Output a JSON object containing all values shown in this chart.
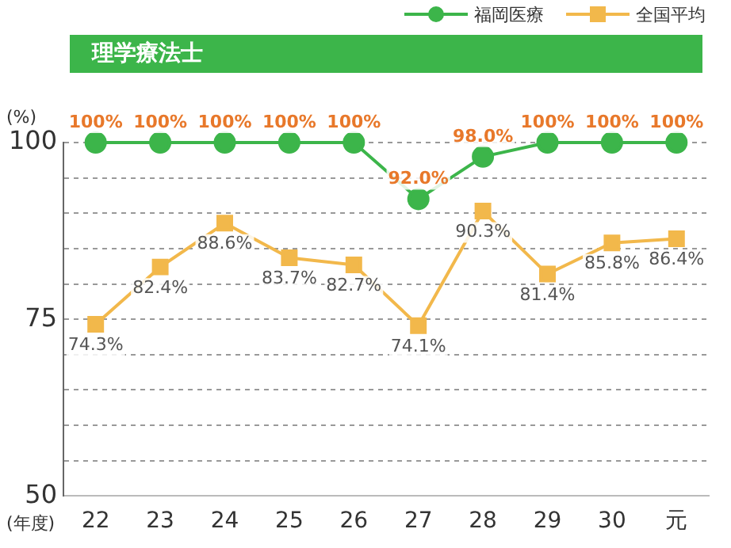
{
  "chart_data": {
    "type": "line",
    "title": "理学療法士",
    "ylabel": "(%)",
    "xlabel": "(年度)",
    "categories": [
      "22",
      "23",
      "24",
      "25",
      "26",
      "27",
      "28",
      "29",
      "30",
      "元"
    ],
    "series": [
      {
        "name": "福岡医療",
        "color": "#3cb54a",
        "marker": "circle",
        "values": [
          100,
          100,
          100,
          100,
          100,
          92.0,
          98.0,
          100,
          100,
          100
        ],
        "value_labels": [
          "100%",
          "100%",
          "100%",
          "100%",
          "100%",
          "92.0%",
          "98.0%",
          "100%",
          "100%",
          "100%"
        ]
      },
      {
        "name": "全国平均",
        "color": "#f2b84b",
        "marker": "square",
        "values": [
          74.3,
          82.4,
          88.6,
          83.7,
          82.7,
          74.1,
          90.3,
          81.4,
          85.8,
          86.4
        ],
        "value_labels": [
          "74.3%",
          "82.4%",
          "88.6%",
          "83.7%",
          "82.7%",
          "74.1%",
          "90.3%",
          "81.4%",
          "85.8%",
          "86.4%"
        ]
      }
    ],
    "ylim": [
      50,
      100
    ],
    "yticks": [
      50,
      {
        "value": 55,
        "label": null
      },
      {
        "value": 60,
        "label": null
      },
      {
        "value": 65,
        "label": null
      },
      {
        "value": 70,
        "label": null
      },
      75,
      {
        "value": 80,
        "label": null
      },
      {
        "value": 85,
        "label": null
      },
      {
        "value": 90,
        "label": null
      },
      {
        "value": 95,
        "label": null
      },
      100
    ],
    "grid": "y",
    "legend": "top right",
    "line_style": "solid"
  }
}
